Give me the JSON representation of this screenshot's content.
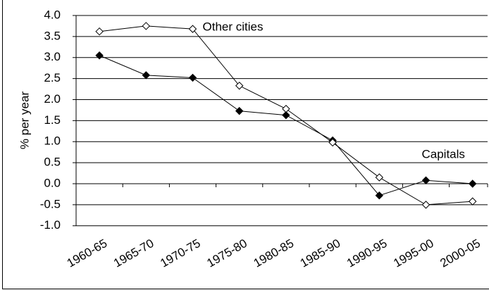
{
  "chart_data": {
    "type": "line",
    "y_label": "% per year",
    "categories": [
      "1960-65",
      "1965-70",
      "1970-75",
      "1975-80",
      "1980-85",
      "1985-90",
      "1990-95",
      "1995-00",
      "2000-05"
    ],
    "series": [
      {
        "name": "Capitals",
        "color": "#000000",
        "marker": "filled-diamond",
        "values": [
          3.05,
          2.58,
          2.52,
          1.73,
          1.63,
          1.03,
          -0.28,
          0.08,
          0.0
        ]
      },
      {
        "name": "Other cities",
        "color": "#000000",
        "marker": "open-diamond",
        "values": [
          3.62,
          3.75,
          3.68,
          2.33,
          1.78,
          0.98,
          0.15,
          -0.5,
          -0.42
        ]
      }
    ],
    "ylim": [
      -1.0,
      4.0
    ],
    "yticks": [
      {
        "value": -1.0,
        "label": "-1.0"
      },
      {
        "value": -0.5,
        "label": "-0.5"
      },
      {
        "value": 0.0,
        "label": "0.0"
      },
      {
        "value": 0.5,
        "label": "0.5"
      },
      {
        "value": 1.0,
        "label": "1.0"
      },
      {
        "value": 1.5,
        "label": "1.5"
      },
      {
        "value": 2.0,
        "label": "2.0"
      },
      {
        "value": 2.5,
        "label": "2.5"
      },
      {
        "value": 3.0,
        "label": "3.0"
      },
      {
        "value": 3.5,
        "label": "3.5"
      },
      {
        "value": 4.0,
        "label": "4.0"
      }
    ],
    "grid": true
  }
}
